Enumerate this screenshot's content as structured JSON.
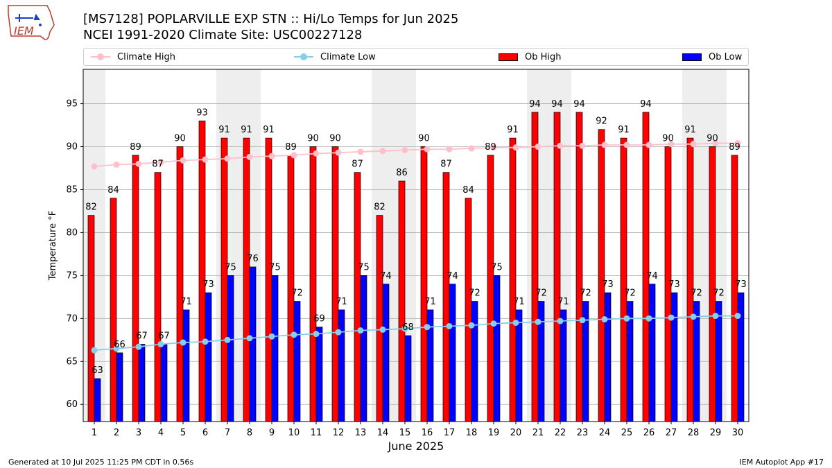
{
  "header": {
    "logo_text": "IEM",
    "title_line1": "[MS7128] POPLARVILLE EXP STN :: Hi/Lo Temps for Jun 2025",
    "title_line2": "NCEI 1991-2020 Climate Site: USC00227128"
  },
  "legend": {
    "climate_high": "Climate High",
    "climate_low": "Climate Low",
    "ob_high": "Ob High",
    "ob_low": "Ob Low"
  },
  "footer": {
    "left": "Generated at 10 Jul 2025 11:25 PM CDT in 0.56s",
    "right": "IEM Autoplot App #17"
  },
  "colors": {
    "ob_high": "#ff0000",
    "ob_low": "#0000ff",
    "climate_high": "#ffc0cb",
    "climate_low": "#87ceeb",
    "weekend_shade": "#eeeeee",
    "grid": "#b0b0b0"
  },
  "chart_data": {
    "type": "bar",
    "xlabel": "June 2025",
    "ylabel": "Temperature °F",
    "ylim": [
      58,
      99
    ],
    "yticks": [
      60,
      65,
      70,
      75,
      80,
      85,
      90,
      95
    ],
    "grid": "horizontal",
    "legend_position": "top",
    "categories": [
      "1",
      "2",
      "3",
      "4",
      "5",
      "6",
      "7",
      "8",
      "9",
      "10",
      "11",
      "12",
      "13",
      "14",
      "15",
      "16",
      "17",
      "18",
      "19",
      "20",
      "21",
      "22",
      "23",
      "24",
      "25",
      "26",
      "27",
      "28",
      "29",
      "30"
    ],
    "shaded_days": [
      1,
      7,
      8,
      14,
      15,
      21,
      22,
      28,
      29
    ],
    "series": [
      {
        "name": "Ob High",
        "kind": "bar",
        "values": [
          82,
          84,
          89,
          87,
          90,
          93,
          91,
          91,
          91,
          89,
          90,
          90,
          87,
          82,
          86,
          90,
          87,
          84,
          89,
          91,
          94,
          94,
          94,
          92,
          91,
          94,
          90,
          91,
          90,
          89
        ]
      },
      {
        "name": "Ob Low",
        "kind": "bar",
        "values": [
          63,
          66,
          67,
          67,
          71,
          73,
          75,
          76,
          75,
          72,
          69,
          71,
          75,
          74,
          68,
          71,
          74,
          72,
          75,
          71,
          72,
          71,
          72,
          73,
          72,
          74,
          73,
          72,
          72,
          73
        ]
      },
      {
        "name": "Climate High",
        "kind": "line",
        "values": [
          87.7,
          87.9,
          88.0,
          88.2,
          88.4,
          88.5,
          88.6,
          88.8,
          88.9,
          89.0,
          89.2,
          89.3,
          89.4,
          89.5,
          89.6,
          89.7,
          89.7,
          89.8,
          89.9,
          89.9,
          90.0,
          90.1,
          90.1,
          90.2,
          90.2,
          90.2,
          90.3,
          90.3,
          90.4,
          90.4
        ]
      },
      {
        "name": "Climate Low",
        "kind": "line",
        "values": [
          66.3,
          66.5,
          66.7,
          67.0,
          67.2,
          67.3,
          67.5,
          67.7,
          67.9,
          68.1,
          68.2,
          68.4,
          68.6,
          68.7,
          68.8,
          69.0,
          69.1,
          69.2,
          69.4,
          69.5,
          69.6,
          69.7,
          69.8,
          69.9,
          70.0,
          70.0,
          70.1,
          70.2,
          70.3,
          70.3
        ]
      }
    ]
  }
}
